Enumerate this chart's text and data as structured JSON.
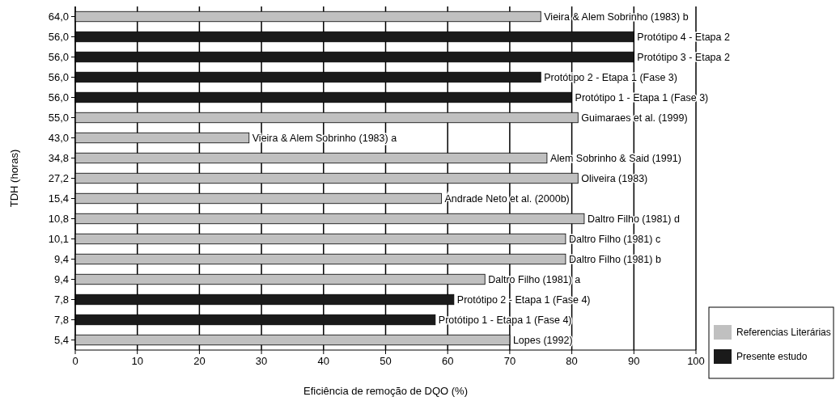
{
  "chart_data": {
    "type": "bar",
    "orientation": "horizontal",
    "xlabel": "Eficiência de remoção de DQO (%)",
    "ylabel": "TDH (horas)",
    "categories": [
      "64,0",
      "56,0",
      "56,0",
      "56,0",
      "56,0",
      "55,0",
      "43,0",
      "34,8",
      "27,2",
      "15,4",
      "10,8",
      "10,1",
      "9,4",
      "9,4",
      "7,8",
      "7,8",
      "5,4"
    ],
    "series": [
      {
        "name": "Referencias Literárias",
        "color": "#c0c0c0",
        "values": [
          75,
          null,
          null,
          null,
          null,
          81,
          28,
          76,
          81,
          59,
          82,
          79,
          79,
          66,
          null,
          null,
          70
        ]
      },
      {
        "name": "Presente estudo",
        "color": "#1a1a1a",
        "values": [
          null,
          90,
          90,
          75,
          80,
          null,
          null,
          null,
          null,
          null,
          null,
          null,
          null,
          null,
          61,
          58,
          null
        ]
      }
    ],
    "annotations": [
      "Vieira & Alem Sobrinho (1983) b",
      "Protótipo 4 - Etapa 2",
      "Protótipo 3 - Etapa 2",
      "Protótipo 2 - Etapa 1 (Fase 3)",
      "Protótipo 1 - Etapa 1 (Fase 3)",
      "Guimaraes et al. (1999)",
      "Vieira & Alem Sobrinho (1983) a",
      "Alem Sobrinho & Said (1991)",
      "Oliveira (1983)",
      "Andrade Neto et al. (2000b)",
      "Daltro Filho (1981) d",
      "Daltro Filho (1981) c",
      "Daltro Filho (1981) b",
      "Daltro Filho (1981) a",
      "Protótipo 2 - Etapa 1 (Fase 4)",
      "Protótipo 1 - Etapa 1 (Fase 4)",
      "Lopes (1992)"
    ],
    "xlim": [
      0,
      100
    ],
    "xticks": [
      0,
      10,
      20,
      30,
      40,
      50,
      60,
      70,
      80,
      90,
      100
    ],
    "grid": "x",
    "legend": "bottom right"
  }
}
